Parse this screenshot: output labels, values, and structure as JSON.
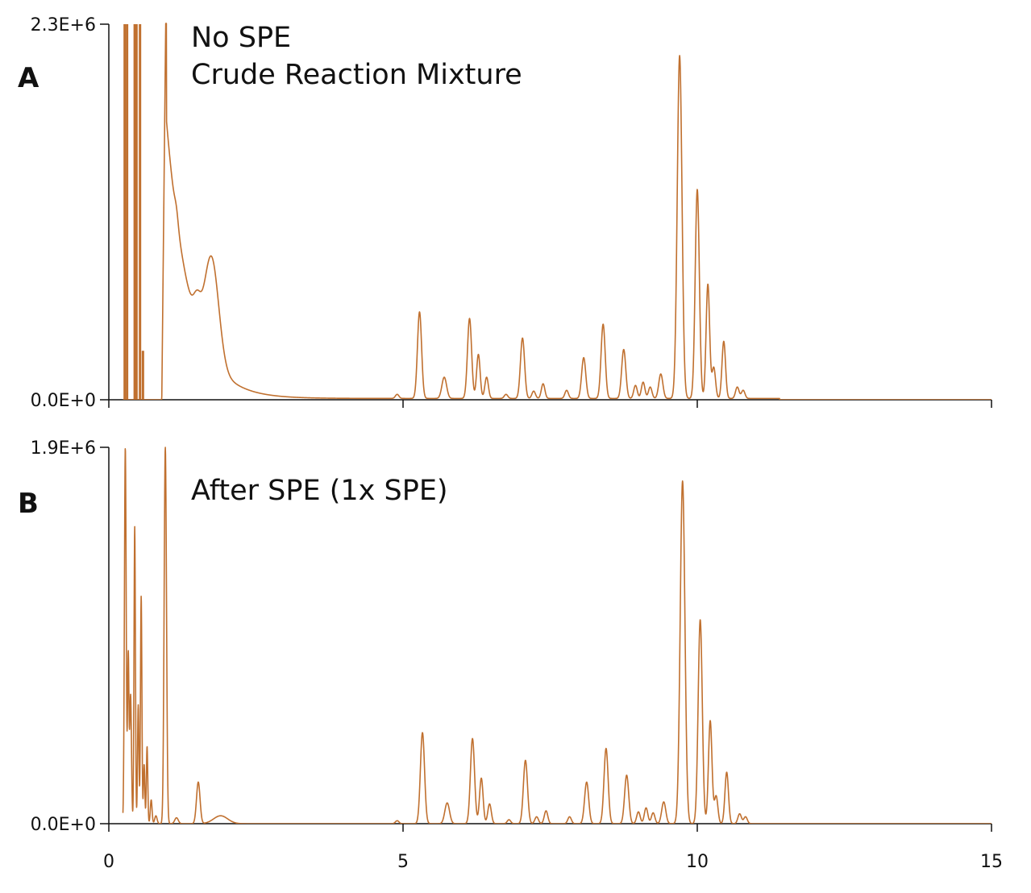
{
  "chart_data": [
    {
      "type": "line",
      "panel": "A",
      "annotation": [
        "No SPE",
        "Crude Reaction Mixture"
      ],
      "xlim": [
        0,
        15
      ],
      "ylim": [
        0,
        2300000
      ],
      "x_ticks": [
        0,
        5,
        10,
        15
      ],
      "x_tick_labels": [
        "0",
        "5",
        "10",
        "15"
      ],
      "y_tick_labels": [
        "0.0E+0",
        "2.3E+6"
      ],
      "grid": false,
      "color": "#c0702f",
      "series": [
        {
          "spikes": [
            {
              "x": 0.27,
              "y": 2300000
            },
            {
              "x": 0.31,
              "y": 2300000
            },
            {
              "x": 0.44,
              "y": 2300000
            },
            {
              "x": 0.47,
              "y": 2300000
            },
            {
              "x": 0.53,
              "y": 2300000
            },
            {
              "x": 0.58,
              "y": 300000
            }
          ],
          "solvent_front": {
            "start": 0.9,
            "peak_x": 0.98,
            "peak_y": 2300000
          },
          "decay": {
            "a": 1700000,
            "tau": 0.4,
            "base": 8000,
            "end": 11.4
          },
          "peaks": [
            {
              "x": 1.15,
              "y": 60000,
              "w": 0.03
            },
            {
              "x": 1.5,
              "y": 130000,
              "w": 0.06
            },
            {
              "x": 1.75,
              "y": 620000,
              "w": 0.12
            },
            {
              "x": 4.9,
              "y": 25000,
              "w": 0.03
            },
            {
              "x": 5.28,
              "y": 530000,
              "w": 0.035
            },
            {
              "x": 5.7,
              "y": 130000,
              "w": 0.04
            },
            {
              "x": 6.13,
              "y": 490000,
              "w": 0.035
            },
            {
              "x": 6.28,
              "y": 270000,
              "w": 0.03
            },
            {
              "x": 6.42,
              "y": 130000,
              "w": 0.03
            },
            {
              "x": 6.75,
              "y": 25000,
              "w": 0.03
            },
            {
              "x": 7.03,
              "y": 370000,
              "w": 0.035
            },
            {
              "x": 7.22,
              "y": 45000,
              "w": 0.03
            },
            {
              "x": 7.38,
              "y": 90000,
              "w": 0.03
            },
            {
              "x": 7.78,
              "y": 50000,
              "w": 0.03
            },
            {
              "x": 8.07,
              "y": 250000,
              "w": 0.035
            },
            {
              "x": 8.4,
              "y": 455000,
              "w": 0.035
            },
            {
              "x": 8.75,
              "y": 300000,
              "w": 0.035
            },
            {
              "x": 8.95,
              "y": 80000,
              "w": 0.03
            },
            {
              "x": 9.08,
              "y": 100000,
              "w": 0.03
            },
            {
              "x": 9.2,
              "y": 70000,
              "w": 0.03
            },
            {
              "x": 9.38,
              "y": 150000,
              "w": 0.035
            },
            {
              "x": 9.7,
              "y": 2100000,
              "w": 0.04
            },
            {
              "x": 10.0,
              "y": 1280000,
              "w": 0.035
            },
            {
              "x": 10.18,
              "y": 700000,
              "w": 0.03
            },
            {
              "x": 10.28,
              "y": 190000,
              "w": 0.03
            },
            {
              "x": 10.45,
              "y": 350000,
              "w": 0.03
            },
            {
              "x": 10.68,
              "y": 70000,
              "w": 0.03
            },
            {
              "x": 10.78,
              "y": 50000,
              "w": 0.03
            }
          ]
        }
      ]
    },
    {
      "type": "line",
      "panel": "B",
      "annotation": [
        "After SPE (1x SPE)"
      ],
      "xlim": [
        0,
        15
      ],
      "ylim": [
        0,
        1900000
      ],
      "x_ticks": [
        0,
        5,
        10,
        15
      ],
      "x_tick_labels": [
        "0",
        "5",
        "10",
        "15"
      ],
      "y_tick_labels": [
        "0.0E+0",
        "1.9E+6"
      ],
      "grid": false,
      "color": "#c0702f",
      "series": [
        {
          "peaks": [
            {
              "x": 0.28,
              "y": 1900000,
              "w": 0.015
            },
            {
              "x": 0.33,
              "y": 850000,
              "w": 0.012
            },
            {
              "x": 0.37,
              "y": 650000,
              "w": 0.015
            },
            {
              "x": 0.44,
              "y": 1500000,
              "w": 0.012
            },
            {
              "x": 0.5,
              "y": 600000,
              "w": 0.012
            },
            {
              "x": 0.55,
              "y": 1150000,
              "w": 0.012
            },
            {
              "x": 0.6,
              "y": 300000,
              "w": 0.012
            },
            {
              "x": 0.65,
              "y": 390000,
              "w": 0.012
            },
            {
              "x": 0.72,
              "y": 120000,
              "w": 0.015
            },
            {
              "x": 0.8,
              "y": 40000,
              "w": 0.02
            },
            {
              "x": 0.96,
              "y": 1900000,
              "w": 0.02
            },
            {
              "x": 1.15,
              "y": 30000,
              "w": 0.03
            },
            {
              "x": 1.52,
              "y": 210000,
              "w": 0.03
            },
            {
              "x": 1.9,
              "y": 40000,
              "w": 0.12
            },
            {
              "x": 4.9,
              "y": 15000,
              "w": 0.03
            },
            {
              "x": 5.33,
              "y": 460000,
              "w": 0.035
            },
            {
              "x": 5.75,
              "y": 105000,
              "w": 0.04
            },
            {
              "x": 6.18,
              "y": 430000,
              "w": 0.035
            },
            {
              "x": 6.33,
              "y": 230000,
              "w": 0.03
            },
            {
              "x": 6.47,
              "y": 100000,
              "w": 0.03
            },
            {
              "x": 6.8,
              "y": 20000,
              "w": 0.03
            },
            {
              "x": 7.08,
              "y": 320000,
              "w": 0.035
            },
            {
              "x": 7.27,
              "y": 35000,
              "w": 0.03
            },
            {
              "x": 7.43,
              "y": 65000,
              "w": 0.03
            },
            {
              "x": 7.83,
              "y": 35000,
              "w": 0.03
            },
            {
              "x": 8.12,
              "y": 210000,
              "w": 0.035
            },
            {
              "x": 8.45,
              "y": 380000,
              "w": 0.035
            },
            {
              "x": 8.8,
              "y": 245000,
              "w": 0.035
            },
            {
              "x": 9.0,
              "y": 60000,
              "w": 0.03
            },
            {
              "x": 9.13,
              "y": 80000,
              "w": 0.03
            },
            {
              "x": 9.25,
              "y": 55000,
              "w": 0.03
            },
            {
              "x": 9.43,
              "y": 110000,
              "w": 0.035
            },
            {
              "x": 9.75,
              "y": 1730000,
              "w": 0.04
            },
            {
              "x": 10.05,
              "y": 1030000,
              "w": 0.035
            },
            {
              "x": 10.22,
              "y": 520000,
              "w": 0.03
            },
            {
              "x": 10.32,
              "y": 140000,
              "w": 0.03
            },
            {
              "x": 10.5,
              "y": 260000,
              "w": 0.03
            },
            {
              "x": 10.72,
              "y": 50000,
              "w": 0.03
            },
            {
              "x": 10.82,
              "y": 35000,
              "w": 0.03
            }
          ]
        }
      ]
    }
  ]
}
